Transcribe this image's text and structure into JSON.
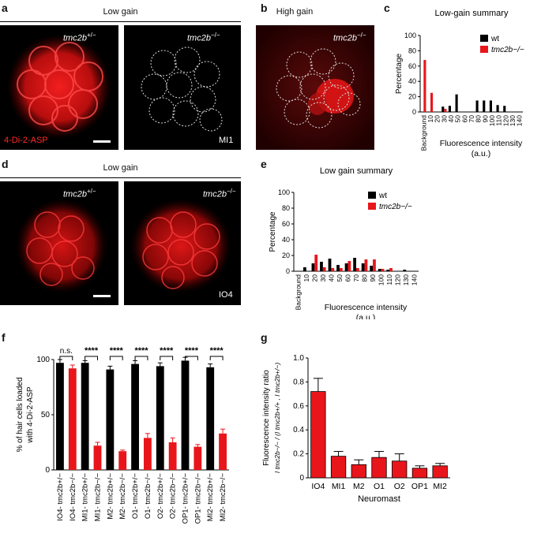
{
  "panels": {
    "a": {
      "letter": "a",
      "header": "Low gain",
      "left_genotype": "tmc2b",
      "left_sup": "+/−",
      "right_genotype": "tmc2b",
      "right_sup": "−/−",
      "dye": "4-Di-2-ASP",
      "corner": "MI1"
    },
    "b": {
      "letter": "b",
      "header": "High gain",
      "genotype": "tmc2b",
      "sup": "−/−"
    },
    "c": {
      "letter": "c"
    },
    "d": {
      "letter": "d",
      "header": "Low gain",
      "left_genotype": "tmc2b",
      "left_sup": "+/−",
      "right_genotype": "tmc2b",
      "right_sup": "−/−",
      "corner": "IO4"
    },
    "e": {
      "letter": "e"
    },
    "f": {
      "letter": "f"
    },
    "g": {
      "letter": "g"
    }
  },
  "colors": {
    "wt": "#000000",
    "mutant": "#e8161b",
    "fluor": "#ff1a1a"
  },
  "chart_data": [
    {
      "panel": "c",
      "type": "bar",
      "title": "Low-gain summary",
      "xlabel": "Fluorescence intensity\n(a.u.)",
      "ylabel": "Percentage",
      "ylim": [
        0,
        100
      ],
      "yticks": [
        0,
        20,
        40,
        60,
        80,
        100
      ],
      "categories": [
        "Background",
        "10",
        "20",
        "30",
        "40",
        "50",
        "60",
        "70",
        "80",
        "90",
        "100",
        "110",
        "120",
        "130",
        "140"
      ],
      "series": [
        {
          "name": "wt",
          "values": [
            0,
            0,
            0,
            7,
            8,
            23,
            0,
            0,
            15,
            15,
            15,
            9,
            8,
            0,
            0
          ]
        },
        {
          "name": "tmc2b−/−",
          "values": [
            68,
            25,
            0,
            4,
            0,
            0,
            0,
            0,
            0,
            0,
            0,
            0,
            0,
            0,
            0
          ]
        }
      ],
      "legend": "top-right"
    },
    {
      "panel": "e",
      "type": "bar",
      "title": "Low gain summary",
      "xlabel": "Fluorescence intensity\n(a.u.)",
      "ylabel": "Percentage",
      "ylim": [
        0,
        100
      ],
      "yticks": [
        0,
        20,
        40,
        60,
        80,
        100
      ],
      "categories": [
        "Background",
        "10",
        "20",
        "30",
        "40",
        "50",
        "60",
        "70",
        "80",
        "90",
        "100",
        "110",
        "120",
        "130",
        "140"
      ],
      "series": [
        {
          "name": "wt",
          "values": [
            0,
            5,
            10,
            12,
            16,
            8,
            10,
            17,
            10,
            7,
            3,
            2,
            0,
            2,
            0
          ]
        },
        {
          "name": "tmc2b−/−",
          "values": [
            0,
            0,
            21,
            5,
            4,
            4,
            13,
            4,
            15,
            15,
            3,
            4,
            0,
            0,
            0
          ]
        }
      ],
      "legend": "top-right"
    },
    {
      "panel": "f",
      "type": "bar",
      "ylabel": "% of hair cells loaded\nwith 4-Di-2-ASP",
      "ylim": [
        0,
        100
      ],
      "yticks": [
        0,
        50,
        100
      ],
      "categories": [
        "IO4- tmc2b+/−",
        "IO4- tmc2b−/−",
        "MI1- tmc2b+/−",
        "MI1- tmc2b−/−",
        "M2- tmc2b+/−",
        "M2- tmc2b−/−",
        "O1- tmc2b+/−",
        "O1- tmc2b−/−",
        "O2- tmc2b+/−",
        "O2- tmc2b−/−",
        "OP1- tmc2b+/−",
        "OP1- tmc2b−/−",
        "MI2- tmc2b+/−",
        "MI2- tmc2b−/−"
      ],
      "prefixes": [
        "IO4-",
        "IO4-",
        "MI1-",
        "MI1-",
        "M2-",
        "M2-",
        "O1-",
        "O1-",
        "O2-",
        "O2-",
        "OP1-",
        "OP1-",
        "MI2-",
        "MI2-"
      ],
      "values": [
        97,
        92,
        97,
        22,
        91,
        17,
        96,
        29,
        94,
        25,
        99,
        21,
        93,
        33
      ],
      "errors": [
        3,
        3,
        2,
        3,
        3,
        1,
        3,
        4,
        3,
        4,
        3,
        2,
        3,
        4
      ],
      "significance": [
        "n.s.",
        "****",
        "****",
        "****",
        "****",
        "****",
        "****"
      ]
    },
    {
      "panel": "g",
      "type": "bar",
      "xlabel": "Neuromast",
      "ylabel": "Fluorescence intensity ratio",
      "ylabel2": "I tmc2b−/− / (I tmc2b+/+ , I tmc2b+/−)",
      "ylim": [
        0,
        1.0
      ],
      "yticks": [
        "0",
        "0.2",
        "0.4",
        "0.6",
        "0.8",
        "1.0"
      ],
      "categories": [
        "IO4",
        "MI1",
        "M2",
        "O1",
        "O2",
        "OP1",
        "MI2"
      ],
      "values": [
        0.72,
        0.18,
        0.11,
        0.17,
        0.14,
        0.08,
        0.1
      ],
      "errors": [
        0.11,
        0.04,
        0.04,
        0.05,
        0.06,
        0.02,
        0.02
      ]
    }
  ]
}
